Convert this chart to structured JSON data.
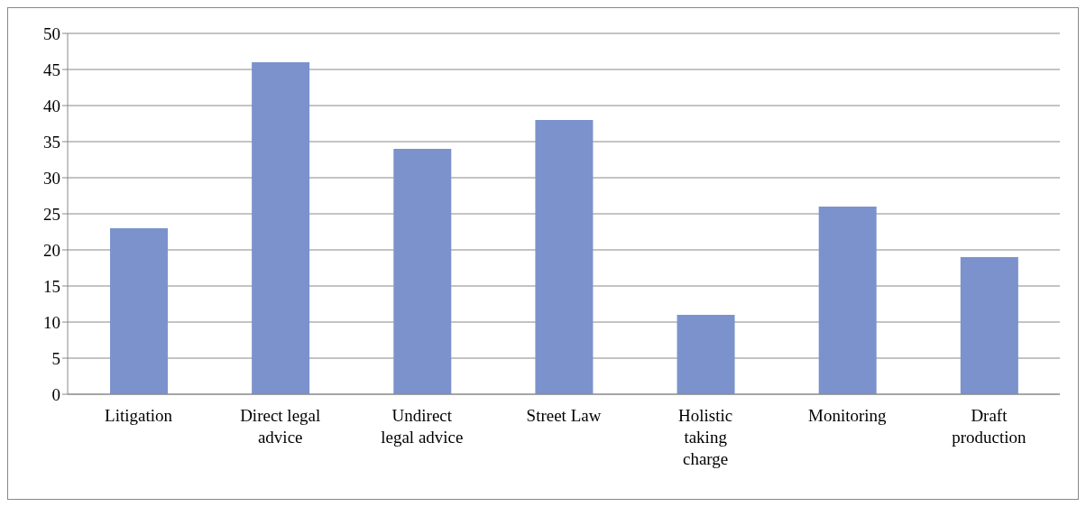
{
  "chart_data": {
    "type": "bar",
    "categories": [
      "Litigation",
      "Direct legal advice",
      "Undirect legal advice",
      "Street Law",
      "Holistic taking charge",
      "Monitoring",
      "Draft production"
    ],
    "values": [
      23,
      46,
      34,
      38,
      11,
      26,
      19
    ],
    "color": "#7b92cc",
    "ylim": [
      0,
      50
    ],
    "yticks": [
      0,
      5,
      10,
      15,
      20,
      25,
      30,
      35,
      40,
      45,
      50
    ],
    "grid": "y",
    "legend": false
  }
}
